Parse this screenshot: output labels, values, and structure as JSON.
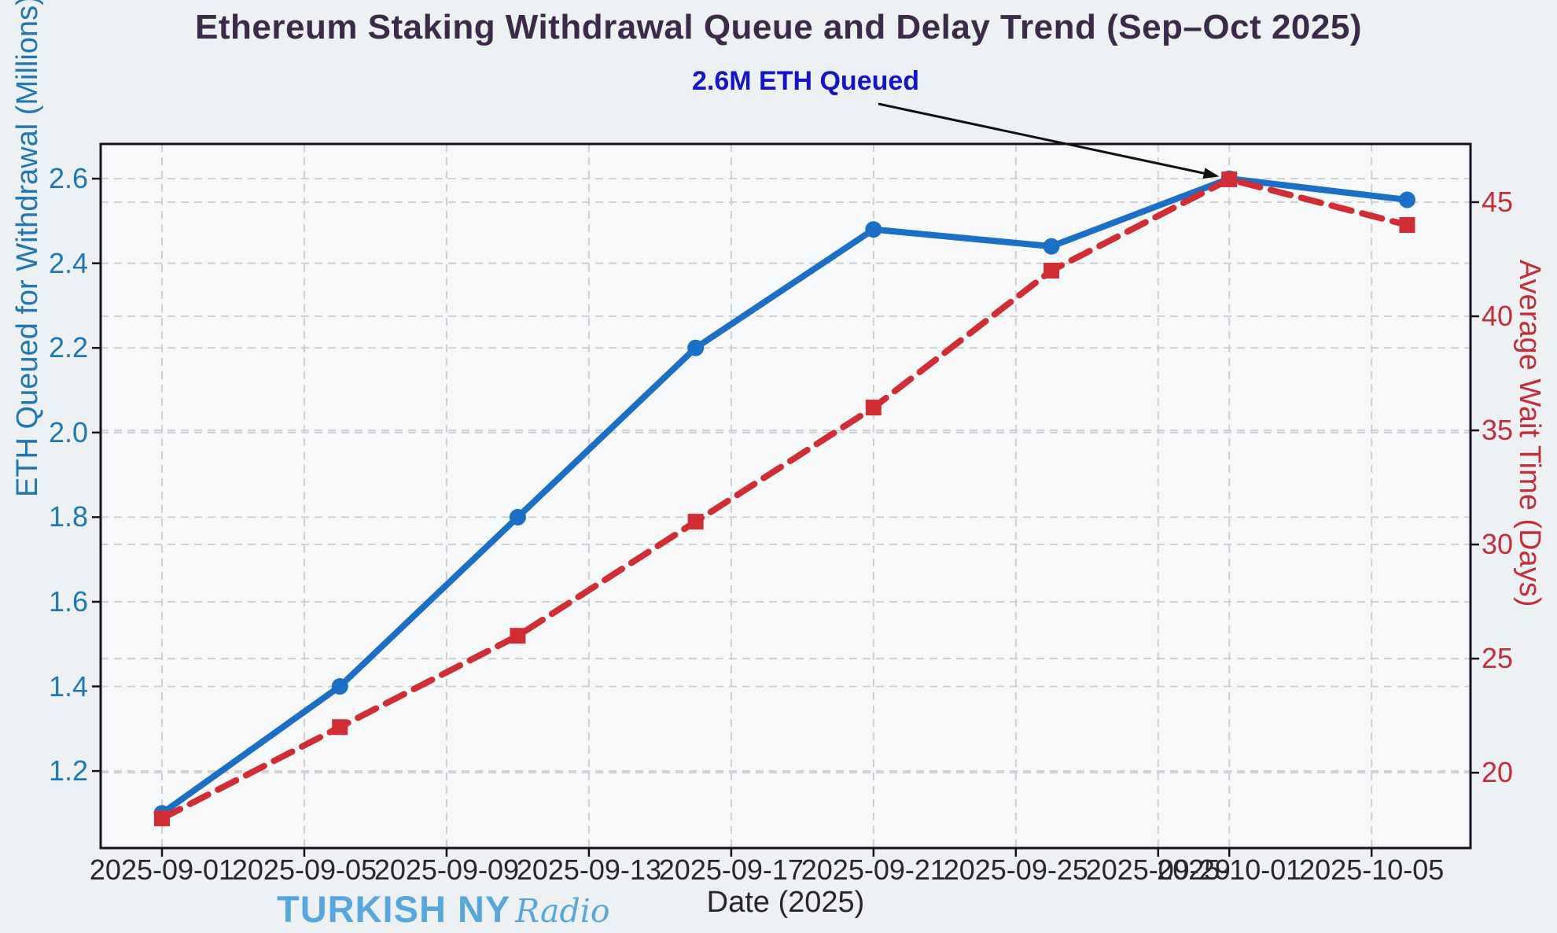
{
  "title": "Ethereum Staking Withdrawal Queue and Delay Trend (Sep–Oct 2025)",
  "watermark": {
    "brand": "TURKISH NY",
    "suffix": "Radio"
  },
  "colors": {
    "figure_bg": "#eef1f4",
    "plot_bg": "#f7f8f9",
    "blue_line": "#1b6fc5",
    "blue_label": "#1f77b4",
    "red_line": "#d12d35",
    "red_label": "#c22f38",
    "grid": "#c9ccd1",
    "spine": "#171022",
    "annotation_text": "#1414cc",
    "annotation_arrow": "#111111",
    "title_text": "#3b2a4a",
    "watermark_text": "#57a7dd"
  },
  "chart_data": {
    "type": "line",
    "title": "Ethereum Staking Withdrawal Queue and Delay Trend (Sep–Oct 2025)",
    "xlabel": "Date (2025)",
    "ylabel_left": "ETH Queued for Withdrawal (Millions)",
    "ylabel_right": "Average Wait Time (Days)",
    "x": [
      "2025-09-01",
      "2025-09-06",
      "2025-09-11",
      "2025-09-16",
      "2025-09-21",
      "2025-09-26",
      "2025-10-01",
      "2025-10-06"
    ],
    "series": [
      {
        "name": "ETH Queued for Withdrawal (Millions)",
        "axis": "left",
        "style": "solid",
        "marker": "circle",
        "color": "#1b6fc5",
        "values": [
          1.1,
          1.4,
          1.8,
          2.2,
          2.48,
          2.44,
          2.6,
          2.55
        ]
      },
      {
        "name": "Average Wait Time (Days)",
        "axis": "right",
        "style": "dashed",
        "marker": "square",
        "color": "#d12d35",
        "values": [
          18,
          22,
          26,
          31,
          36,
          42,
          46,
          44
        ]
      }
    ],
    "x_ticks": [
      "2025-09-01",
      "2025-09-05",
      "2025-09-09",
      "2025-09-13",
      "2025-09-17",
      "2025-09-21",
      "2025-09-25",
      "2025-09-29",
      "2025-10-01",
      "2025-10-05"
    ],
    "y_ticks_left": [
      1.2,
      1.4,
      1.6,
      1.8,
      2.0,
      2.2,
      2.4,
      2.6
    ],
    "y_ticks_right": [
      20,
      25,
      30,
      35,
      40,
      45
    ],
    "ylim_left": [
      1.018,
      2.682
    ],
    "ylim_right": [
      16.7,
      47.55
    ],
    "xlim_days": [
      -1.724,
      36.78
    ],
    "grid": true,
    "legend": "none",
    "annotation": {
      "text": "2.6M ETH Queued",
      "target_date": "2025-10-01",
      "target_value_left": 2.6
    }
  }
}
